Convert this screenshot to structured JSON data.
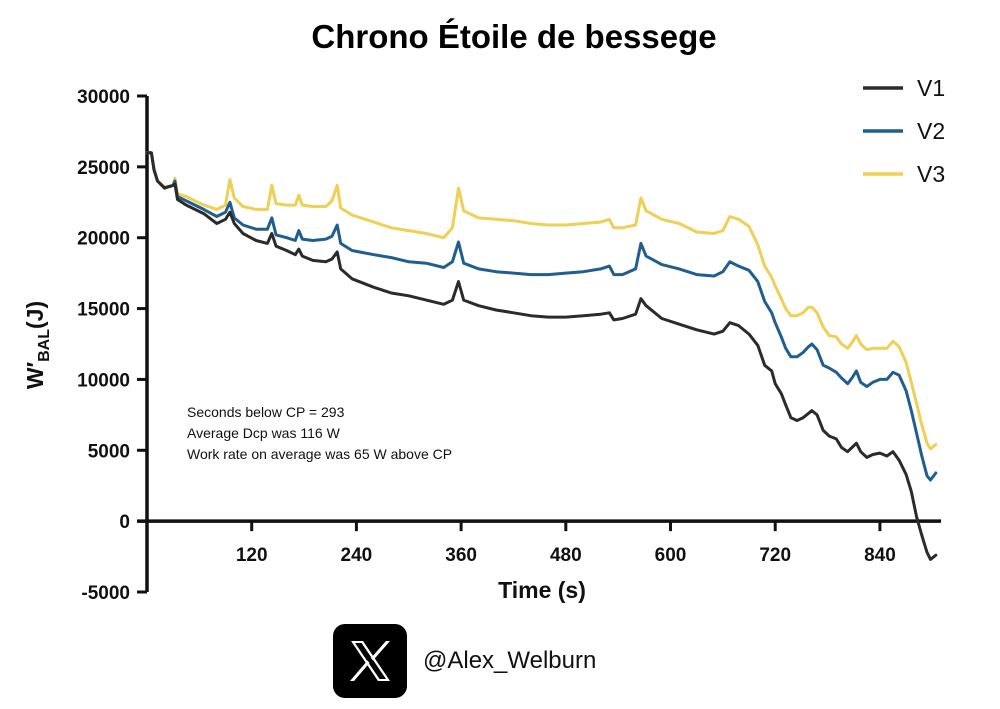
{
  "chart_data": {
    "type": "line",
    "title": "Chrono Étoile de bessege",
    "xlabel": "Time (s)",
    "ylabel": "W′BAL(J)",
    "xlim": [
      0,
      910
    ],
    "ylim": [
      -5000,
      30000
    ],
    "xticks": [
      120,
      240,
      360,
      480,
      600,
      720,
      840
    ],
    "yticks": [
      -5000,
      0,
      5000,
      10000,
      15000,
      20000,
      25000,
      30000
    ],
    "legend_position": "top-right",
    "series": [
      {
        "name": "V1",
        "color": "#2b2b2b",
        "points": [
          [
            0,
            26000
          ],
          [
            5,
            26000
          ],
          [
            8,
            24800
          ],
          [
            12,
            24000
          ],
          [
            20,
            23500
          ],
          [
            30,
            23700
          ],
          [
            32,
            23800
          ],
          [
            35,
            22700
          ],
          [
            45,
            22300
          ],
          [
            55,
            22000
          ],
          [
            65,
            21700
          ],
          [
            80,
            21000
          ],
          [
            90,
            21300
          ],
          [
            95,
            21800
          ],
          [
            100,
            21000
          ],
          [
            110,
            20300
          ],
          [
            125,
            19800
          ],
          [
            138,
            19600
          ],
          [
            143,
            20300
          ],
          [
            148,
            19400
          ],
          [
            160,
            19100
          ],
          [
            170,
            18800
          ],
          [
            174,
            19200
          ],
          [
            178,
            18700
          ],
          [
            190,
            18400
          ],
          [
            205,
            18300
          ],
          [
            212,
            18500
          ],
          [
            218,
            19000
          ],
          [
            222,
            17800
          ],
          [
            235,
            17100
          ],
          [
            260,
            16500
          ],
          [
            280,
            16100
          ],
          [
            300,
            15900
          ],
          [
            320,
            15600
          ],
          [
            340,
            15300
          ],
          [
            350,
            15600
          ],
          [
            357,
            16900
          ],
          [
            363,
            15600
          ],
          [
            380,
            15200
          ],
          [
            400,
            14900
          ],
          [
            420,
            14700
          ],
          [
            440,
            14500
          ],
          [
            460,
            14400
          ],
          [
            480,
            14400
          ],
          [
            500,
            14500
          ],
          [
            520,
            14600
          ],
          [
            530,
            14700
          ],
          [
            535,
            14200
          ],
          [
            545,
            14300
          ],
          [
            560,
            14600
          ],
          [
            566,
            15700
          ],
          [
            572,
            15200
          ],
          [
            590,
            14300
          ],
          [
            610,
            13900
          ],
          [
            630,
            13500
          ],
          [
            650,
            13200
          ],
          [
            660,
            13400
          ],
          [
            668,
            14000
          ],
          [
            678,
            13800
          ],
          [
            690,
            13200
          ],
          [
            700,
            12400
          ],
          [
            708,
            11000
          ],
          [
            716,
            10600
          ],
          [
            720,
            9700
          ],
          [
            727,
            9000
          ],
          [
            732,
            8200
          ],
          [
            738,
            7300
          ],
          [
            745,
            7100
          ],
          [
            752,
            7300
          ],
          [
            758,
            7600
          ],
          [
            762,
            7800
          ],
          [
            768,
            7500
          ],
          [
            775,
            6400
          ],
          [
            782,
            6000
          ],
          [
            790,
            5800
          ],
          [
            796,
            5200
          ],
          [
            803,
            4900
          ],
          [
            808,
            5200
          ],
          [
            813,
            5500
          ],
          [
            818,
            4900
          ],
          [
            825,
            4500
          ],
          [
            832,
            4700
          ],
          [
            840,
            4800
          ],
          [
            848,
            4600
          ],
          [
            855,
            4900
          ],
          [
            862,
            4300
          ],
          [
            870,
            3300
          ],
          [
            876,
            2100
          ],
          [
            882,
            300
          ],
          [
            888,
            -1000
          ],
          [
            894,
            -2200
          ],
          [
            898,
            -2700
          ],
          [
            904,
            -2400
          ]
        ]
      },
      {
        "name": "V2",
        "color": "#1f5e8e",
        "points": [
          [
            0,
            26000
          ],
          [
            5,
            26000
          ],
          [
            8,
            24800
          ],
          [
            12,
            24000
          ],
          [
            20,
            23500
          ],
          [
            30,
            23700
          ],
          [
            32,
            24000
          ],
          [
            35,
            22900
          ],
          [
            45,
            22600
          ],
          [
            55,
            22300
          ],
          [
            65,
            22000
          ],
          [
            80,
            21500
          ],
          [
            90,
            21800
          ],
          [
            95,
            22500
          ],
          [
            100,
            21400
          ],
          [
            110,
            20900
          ],
          [
            125,
            20600
          ],
          [
            138,
            20600
          ],
          [
            143,
            21400
          ],
          [
            148,
            20200
          ],
          [
            160,
            20000
          ],
          [
            170,
            19800
          ],
          [
            174,
            20500
          ],
          [
            178,
            19900
          ],
          [
            190,
            19800
          ],
          [
            205,
            19900
          ],
          [
            212,
            20100
          ],
          [
            218,
            20900
          ],
          [
            222,
            19600
          ],
          [
            235,
            19100
          ],
          [
            260,
            18800
          ],
          [
            280,
            18600
          ],
          [
            300,
            18300
          ],
          [
            320,
            18200
          ],
          [
            340,
            17900
          ],
          [
            350,
            18300
          ],
          [
            357,
            19700
          ],
          [
            363,
            18200
          ],
          [
            380,
            17800
          ],
          [
            400,
            17600
          ],
          [
            420,
            17500
          ],
          [
            440,
            17400
          ],
          [
            460,
            17400
          ],
          [
            480,
            17500
          ],
          [
            500,
            17600
          ],
          [
            520,
            17800
          ],
          [
            530,
            18000
          ],
          [
            535,
            17400
          ],
          [
            545,
            17400
          ],
          [
            560,
            17800
          ],
          [
            566,
            19600
          ],
          [
            572,
            18700
          ],
          [
            590,
            18100
          ],
          [
            610,
            17800
          ],
          [
            630,
            17400
          ],
          [
            650,
            17300
          ],
          [
            660,
            17600
          ],
          [
            668,
            18300
          ],
          [
            678,
            18000
          ],
          [
            690,
            17700
          ],
          [
            700,
            16900
          ],
          [
            708,
            15500
          ],
          [
            716,
            14700
          ],
          [
            720,
            14000
          ],
          [
            727,
            13000
          ],
          [
            732,
            12200
          ],
          [
            738,
            11600
          ],
          [
            745,
            11600
          ],
          [
            752,
            11900
          ],
          [
            758,
            12300
          ],
          [
            762,
            12500
          ],
          [
            768,
            12100
          ],
          [
            775,
            11000
          ],
          [
            782,
            10800
          ],
          [
            790,
            10500
          ],
          [
            796,
            10100
          ],
          [
            803,
            9700
          ],
          [
            808,
            10100
          ],
          [
            813,
            10600
          ],
          [
            818,
            9800
          ],
          [
            825,
            9500
          ],
          [
            832,
            9800
          ],
          [
            840,
            10000
          ],
          [
            848,
            10000
          ],
          [
            855,
            10500
          ],
          [
            862,
            10300
          ],
          [
            870,
            9200
          ],
          [
            876,
            7800
          ],
          [
            882,
            6200
          ],
          [
            888,
            4600
          ],
          [
            894,
            3200
          ],
          [
            898,
            2900
          ],
          [
            904,
            3400
          ]
        ]
      },
      {
        "name": "V3",
        "color": "#f0cf55",
        "points": [
          [
            0,
            26000
          ],
          [
            5,
            26000
          ],
          [
            8,
            24800
          ],
          [
            12,
            24000
          ],
          [
            20,
            23600
          ],
          [
            30,
            23700
          ],
          [
            32,
            24200
          ],
          [
            35,
            23100
          ],
          [
            45,
            22900
          ],
          [
            55,
            22600
          ],
          [
            65,
            22300
          ],
          [
            80,
            22000
          ],
          [
            90,
            22300
          ],
          [
            95,
            24100
          ],
          [
            100,
            22800
          ],
          [
            110,
            22200
          ],
          [
            125,
            22000
          ],
          [
            138,
            22000
          ],
          [
            143,
            23700
          ],
          [
            148,
            22400
          ],
          [
            160,
            22300
          ],
          [
            170,
            22300
          ],
          [
            174,
            23000
          ],
          [
            178,
            22300
          ],
          [
            190,
            22200
          ],
          [
            205,
            22200
          ],
          [
            212,
            22600
          ],
          [
            218,
            23700
          ],
          [
            222,
            22100
          ],
          [
            235,
            21600
          ],
          [
            260,
            21100
          ],
          [
            280,
            20700
          ],
          [
            300,
            20500
          ],
          [
            320,
            20300
          ],
          [
            340,
            20000
          ],
          [
            350,
            20700
          ],
          [
            357,
            23500
          ],
          [
            363,
            21900
          ],
          [
            380,
            21400
          ],
          [
            400,
            21300
          ],
          [
            420,
            21200
          ],
          [
            440,
            21000
          ],
          [
            460,
            20900
          ],
          [
            480,
            20900
          ],
          [
            500,
            21000
          ],
          [
            520,
            21100
          ],
          [
            530,
            21300
          ],
          [
            535,
            20700
          ],
          [
            545,
            20700
          ],
          [
            560,
            20900
          ],
          [
            566,
            22800
          ],
          [
            572,
            21900
          ],
          [
            590,
            21300
          ],
          [
            610,
            21000
          ],
          [
            630,
            20400
          ],
          [
            650,
            20300
          ],
          [
            660,
            20500
          ],
          [
            668,
            21500
          ],
          [
            678,
            21300
          ],
          [
            690,
            20800
          ],
          [
            700,
            19500
          ],
          [
            708,
            18000
          ],
          [
            716,
            17200
          ],
          [
            720,
            16600
          ],
          [
            727,
            15700
          ],
          [
            732,
            15000
          ],
          [
            738,
            14500
          ],
          [
            745,
            14500
          ],
          [
            752,
            14700
          ],
          [
            758,
            15100
          ],
          [
            762,
            15100
          ],
          [
            768,
            14700
          ],
          [
            775,
            13700
          ],
          [
            782,
            13100
          ],
          [
            790,
            13000
          ],
          [
            796,
            12500
          ],
          [
            803,
            12200
          ],
          [
            808,
            12600
          ],
          [
            813,
            13100
          ],
          [
            818,
            12500
          ],
          [
            825,
            12100
          ],
          [
            832,
            12200
          ],
          [
            840,
            12200
          ],
          [
            848,
            12200
          ],
          [
            855,
            12700
          ],
          [
            862,
            12300
          ],
          [
            870,
            11200
          ],
          [
            876,
            9800
          ],
          [
            882,
            8300
          ],
          [
            888,
            6800
          ],
          [
            894,
            5500
          ],
          [
            898,
            5100
          ],
          [
            904,
            5400
          ]
        ]
      }
    ],
    "annotations": [
      "Seconds below CP = 293",
      "Average Dcp was 116 W",
      "Work rate on average was 65 W above CP"
    ]
  },
  "footer": {
    "icon": "x-logo-icon",
    "handle": "@Alex_Welburn"
  }
}
